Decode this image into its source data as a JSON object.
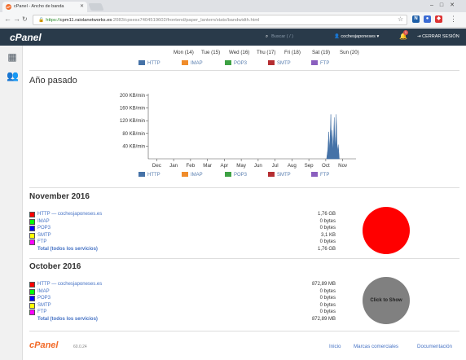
{
  "browser": {
    "tab_title": "cPanel - Ancho de banda",
    "tab_icon": "cP",
    "url_scheme": "https://",
    "url_host": "cpm11.raiolanetworks.es",
    "url_path": ":2083/cpsess7404519602/frontend/paper_lantern/stats/bandwidth.html"
  },
  "cpanel": {
    "logo": "cPanel",
    "search_placeholder": "Buscar ( / )",
    "user": "cochesjaponeses",
    "notifications": "1",
    "logout": "CERRAR SESIÓN"
  },
  "week_days": [
    "Mon (14)",
    "Tue (15)",
    "Wed (16)",
    "Thu (17)",
    "Fri (18)",
    "Sat (19)",
    "Sun (20)"
  ],
  "legend": [
    {
      "label": "HTTP",
      "color": "#4572A7"
    },
    {
      "label": "IMAP",
      "color": "#F08C2A"
    },
    {
      "label": "POP3",
      "color": "#3DA143"
    },
    {
      "label": "SMTP",
      "color": "#B52E32"
    },
    {
      "label": "FTP",
      "color": "#8B5FBF"
    }
  ],
  "year_section": {
    "title": "Año pasado"
  },
  "chart_data": {
    "type": "area",
    "title": "",
    "xlabel": "",
    "ylabel": "",
    "categories": [
      "Dec",
      "Jan",
      "Feb",
      "Mar",
      "Apr",
      "May",
      "Jun",
      "Jul",
      "Aug",
      "Sep",
      "Oct",
      "Nov"
    ],
    "ytick_labels": [
      "40 KB/min",
      "80 KB/min",
      "120 KB/min",
      "160 KB/min",
      "200 KB/min"
    ],
    "yticks": [
      40,
      80,
      120,
      160,
      200
    ],
    "ylim": [
      0,
      200
    ],
    "grid": false,
    "legend_position": "bottom",
    "series": [
      {
        "name": "HTTP",
        "color": "#4572A7",
        "x": [
          10.55,
          10.62,
          10.68,
          10.72,
          10.76,
          10.8,
          10.84,
          10.88,
          10.92,
          10.96,
          11.0,
          11.04,
          11.08,
          11.12,
          11.16,
          11.2,
          11.24,
          11.3
        ],
        "values": [
          0,
          30,
          85,
          20,
          75,
          140,
          40,
          90,
          25,
          60,
          130,
          35,
          70,
          140,
          50,
          20,
          45,
          0
        ]
      }
    ]
  },
  "months": [
    {
      "title": "November 2016",
      "rows": [
        {
          "label": "HTTP — cochesjaponeses.es",
          "value": "1,76 GB",
          "color": "#FF0000"
        },
        {
          "label": "IMAP",
          "value": "0 bytes",
          "color": "#00FF00"
        },
        {
          "label": "POP3",
          "value": "0 bytes",
          "color": "#0000FF"
        },
        {
          "label": "SMTP",
          "value": "3,1 KB",
          "color": "#FFFF00"
        },
        {
          "label": "FTP",
          "value": "0 bytes",
          "color": "#FF00FF"
        }
      ],
      "total_label": "Total (todos los servicios)",
      "total_value": "1,76 GB",
      "pie_color": "#FF0000",
      "pie_label": ""
    },
    {
      "title": "October 2016",
      "rows": [
        {
          "label": "HTTP — cochesjaponeses.es",
          "value": "872,89 MB",
          "color": "#FF0000"
        },
        {
          "label": "IMAP",
          "value": "0 bytes",
          "color": "#00FF00"
        },
        {
          "label": "POP3",
          "value": "0 bytes",
          "color": "#0000FF"
        },
        {
          "label": "SMTP",
          "value": "0 bytes",
          "color": "#FFFF00"
        },
        {
          "label": "FTP",
          "value": "0 bytes",
          "color": "#FF00FF"
        }
      ],
      "total_label": "Total (todos los servicios)",
      "total_value": "872,89 MB",
      "pie_color": "#808080",
      "pie_label": "Click to Show"
    }
  ],
  "footer": {
    "logo": "cPanel",
    "version": "60.0.24",
    "links": [
      "Inicio",
      "Marcas comerciales",
      "Documentación"
    ]
  }
}
